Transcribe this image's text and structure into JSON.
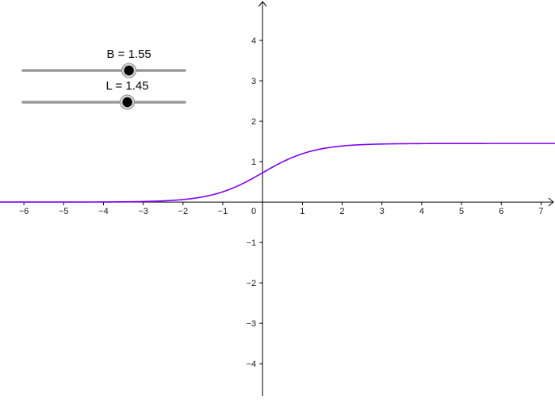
{
  "sliders": [
    {
      "id": "B",
      "caption": "B = 1.55",
      "value": 1.55,
      "min": -5,
      "max": 5
    },
    {
      "id": "L",
      "caption": "L = 1.45",
      "value": 1.45,
      "min": -5,
      "max": 5
    }
  ],
  "axes": {
    "x_range": [
      -6.6,
      7.35
    ],
    "y_range": [
      -4.8,
      5.0
    ],
    "x_ticks": [
      -6,
      -5,
      -4,
      -3,
      -2,
      -1,
      1,
      2,
      3,
      4,
      5,
      6,
      7
    ],
    "y_ticks": [
      -4,
      -3,
      -2,
      -1,
      1,
      2,
      3,
      4
    ],
    "origin_label": "0",
    "grid": false
  },
  "curve": {
    "type": "logistic",
    "L": 1.45,
    "B": 1.55,
    "color": "#7f00ff"
  },
  "colors": {
    "axis": "#000000",
    "slider_track": "#999999",
    "slider_knob": "#000000",
    "curve": "#7f00ff"
  }
}
